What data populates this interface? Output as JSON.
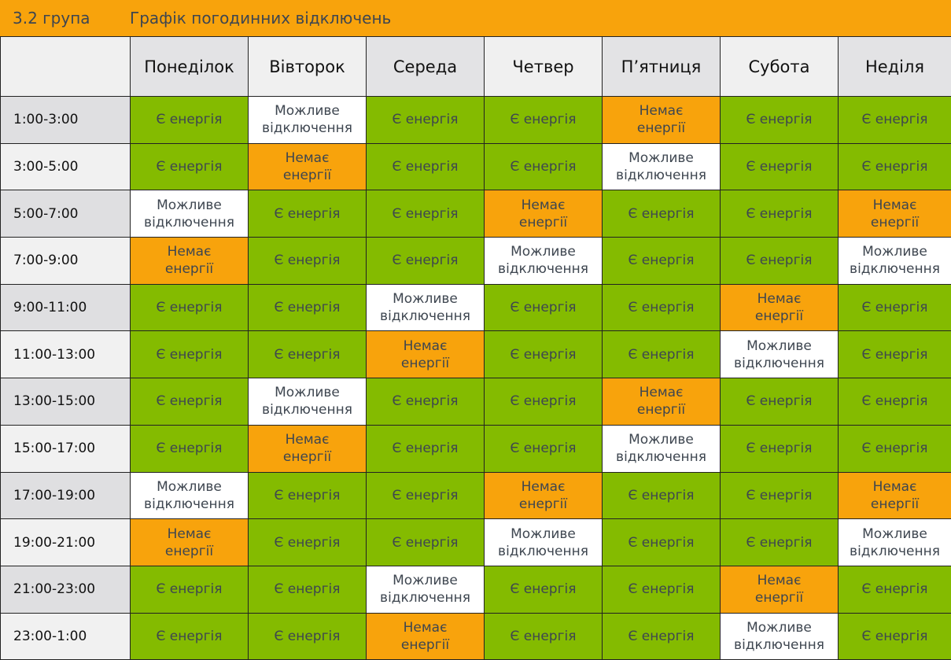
{
  "header": {
    "group": "3.2 група",
    "title": "Графік погодинних відключень"
  },
  "days": [
    "Понеділок",
    "Вівторок",
    "Середа",
    "Четвер",
    "П’ятниця",
    "Субота",
    "Неділя"
  ],
  "states": {
    "G": {
      "label": "Є енергія",
      "color": "#84bb00"
    },
    "M": {
      "label": "Можливе відключення",
      "color": "#ffffff"
    },
    "N": {
      "label": "Немає енергії",
      "color": "#f8a30c"
    }
  },
  "rows": [
    {
      "time": "1:00-3:00",
      "cells": [
        "G",
        "M",
        "G",
        "G",
        "N",
        "G",
        "G"
      ]
    },
    {
      "time": "3:00-5:00",
      "cells": [
        "G",
        "N",
        "G",
        "G",
        "M",
        "G",
        "G"
      ]
    },
    {
      "time": "5:00-7:00",
      "cells": [
        "M",
        "G",
        "G",
        "N",
        "G",
        "G",
        "N"
      ]
    },
    {
      "time": "7:00-9:00",
      "cells": [
        "N",
        "G",
        "G",
        "M",
        "G",
        "G",
        "M"
      ]
    },
    {
      "time": "9:00-11:00",
      "cells": [
        "G",
        "G",
        "M",
        "G",
        "G",
        "N",
        "G"
      ]
    },
    {
      "time": "11:00-13:00",
      "cells": [
        "G",
        "G",
        "N",
        "G",
        "G",
        "M",
        "G"
      ]
    },
    {
      "time": "13:00-15:00",
      "cells": [
        "G",
        "M",
        "G",
        "G",
        "N",
        "G",
        "G"
      ]
    },
    {
      "time": "15:00-17:00",
      "cells": [
        "G",
        "N",
        "G",
        "G",
        "M",
        "G",
        "G"
      ]
    },
    {
      "time": "17:00-19:00",
      "cells": [
        "M",
        "G",
        "G",
        "N",
        "G",
        "G",
        "N"
      ]
    },
    {
      "time": "19:00-21:00",
      "cells": [
        "N",
        "G",
        "G",
        "M",
        "G",
        "G",
        "M"
      ]
    },
    {
      "time": "21:00-23:00",
      "cells": [
        "G",
        "G",
        "M",
        "G",
        "G",
        "N",
        "G"
      ]
    },
    {
      "time": "23:00-1:00",
      "cells": [
        "G",
        "G",
        "N",
        "G",
        "G",
        "M",
        "G"
      ]
    }
  ]
}
